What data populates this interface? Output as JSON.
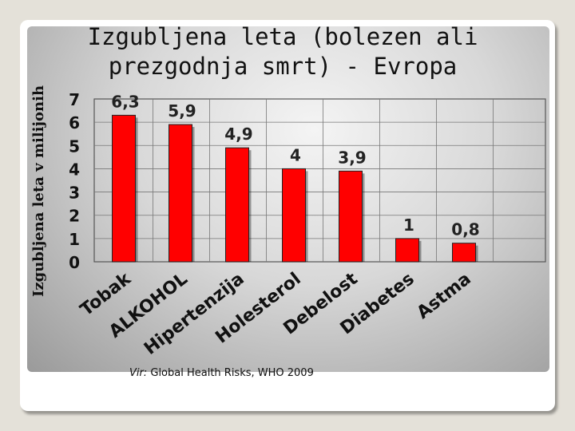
{
  "chart_data": {
    "type": "bar",
    "title_lines": [
      "Izgubljena leta (bolezen ali",
      "prezgodnja smrt) - Evropa"
    ],
    "ylabel": "Izgubljena leta v milijonih",
    "xlabel": "",
    "categories": [
      "Tobak",
      "ALKOHOL",
      "Hipertenzija",
      "Holesterol",
      "Debelost",
      "Diabetes",
      "Astma"
    ],
    "values": [
      6.3,
      5.9,
      4.9,
      4,
      3.9,
      1,
      0.8
    ],
    "value_labels": [
      "6,3",
      "5,9",
      "4,9",
      "4",
      "3,9",
      "1",
      "0,8"
    ],
    "yticks": [
      "0",
      "1",
      "2",
      "3",
      "4",
      "5",
      "6",
      "7"
    ],
    "ylim": [
      0,
      7
    ],
    "grid": true,
    "bar_color": "#ff0000"
  },
  "source": {
    "prefix": "Vir:",
    "text": " Global Health Risks, WHO 2009"
  }
}
